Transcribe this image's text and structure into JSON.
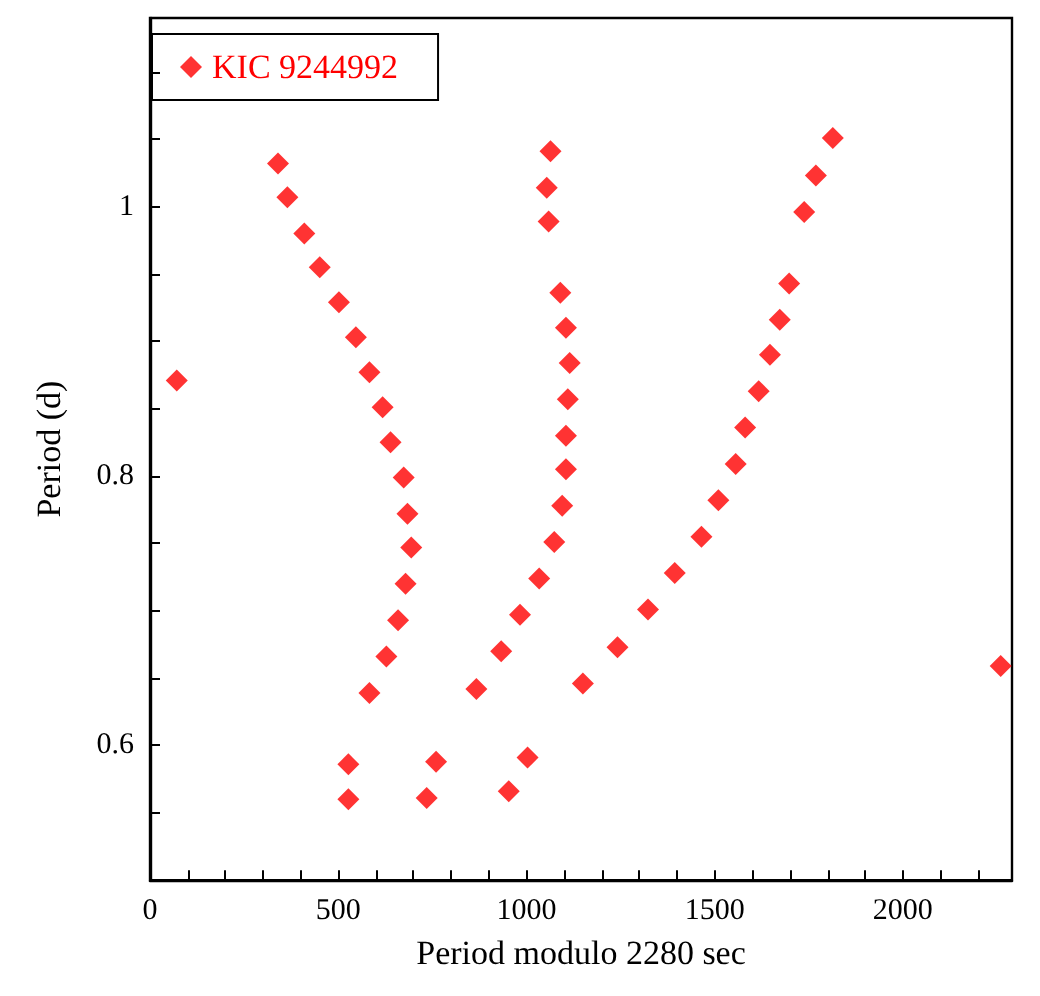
{
  "chart_data": {
    "type": "scatter",
    "xlabel": "Period modulo 2280 sec",
    "ylabel": "Period (d)",
    "xlim": [
      0,
      2290
    ],
    "ylim": [
      0.5,
      1.14
    ],
    "xticks": [
      0,
      {
        "value": 100,
        "label": null
      },
      {
        "value": 200,
        "label": null
      },
      {
        "value": 300,
        "label": null
      },
      {
        "value": 400,
        "label": null
      },
      500,
      {
        "value": 600,
        "label": null
      },
      {
        "value": 700,
        "label": null
      },
      {
        "value": 800,
        "label": null
      },
      {
        "value": 900,
        "label": null
      },
      1000,
      {
        "value": 1100,
        "label": null
      },
      {
        "value": 1200,
        "label": null
      },
      {
        "value": 1300,
        "label": null
      },
      {
        "value": 1400,
        "label": null
      },
      1500,
      {
        "value": 1600,
        "label": null
      },
      {
        "value": 1700,
        "label": null
      },
      {
        "value": 1800,
        "label": null
      },
      {
        "value": 1900,
        "label": null
      },
      2000,
      {
        "value": 2100,
        "label": null
      },
      {
        "value": 2200,
        "label": null
      }
    ],
    "yticks": [
      {
        "value": 0.55,
        "label": null
      },
      0.6,
      {
        "value": 0.65,
        "label": null
      },
      {
        "value": 0.7,
        "label": null
      },
      {
        "value": 0.75,
        "label": null
      },
      0.8,
      {
        "value": 0.85,
        "label": null
      },
      {
        "value": 0.9,
        "label": null
      },
      {
        "value": 0.95,
        "label": null
      },
      1,
      {
        "value": 1.05,
        "label": null
      },
      {
        "value": 1.1,
        "label": null
      }
    ],
    "marker": "diamond",
    "legend": "top left",
    "grid": false,
    "series": [
      {
        "name": "KIC 9244992",
        "color": "#ff0000",
        "x": [
          71,
          340,
          365,
          410,
          451,
          502,
          547,
          583,
          618,
          639,
          674,
          684,
          694,
          679,
          659,
          628,
          583,
          527,
          527,
          735,
          760,
          867,
          933,
          983,
          1034,
          1074,
          1095,
          1105,
          1105,
          1110,
          1115,
          1105,
          1090,
          1059,
          1054,
          1064,
          953,
          1003,
          1150,
          1242,
          1323,
          1394,
          1465,
          1510,
          1556,
          1581,
          1617,
          1647,
          1673,
          1698,
          1738,
          1769,
          1814,
          2260
        ],
        "values": [
          0.871,
          1.032,
          1.007,
          0.98,
          0.955,
          0.929,
          0.903,
          0.877,
          0.851,
          0.825,
          0.799,
          0.772,
          0.747,
          0.72,
          0.693,
          0.666,
          0.639,
          0.586,
          0.56,
          0.561,
          0.588,
          0.642,
          0.67,
          0.697,
          0.724,
          0.751,
          0.778,
          0.805,
          0.83,
          0.857,
          0.884,
          0.91,
          0.936,
          0.989,
          1.014,
          1.041,
          0.566,
          0.591,
          0.646,
          0.673,
          0.701,
          0.728,
          0.755,
          0.782,
          0.809,
          0.836,
          0.863,
          0.89,
          0.916,
          0.943,
          0.996,
          1.023,
          1.051,
          0.659
        ]
      }
    ]
  }
}
